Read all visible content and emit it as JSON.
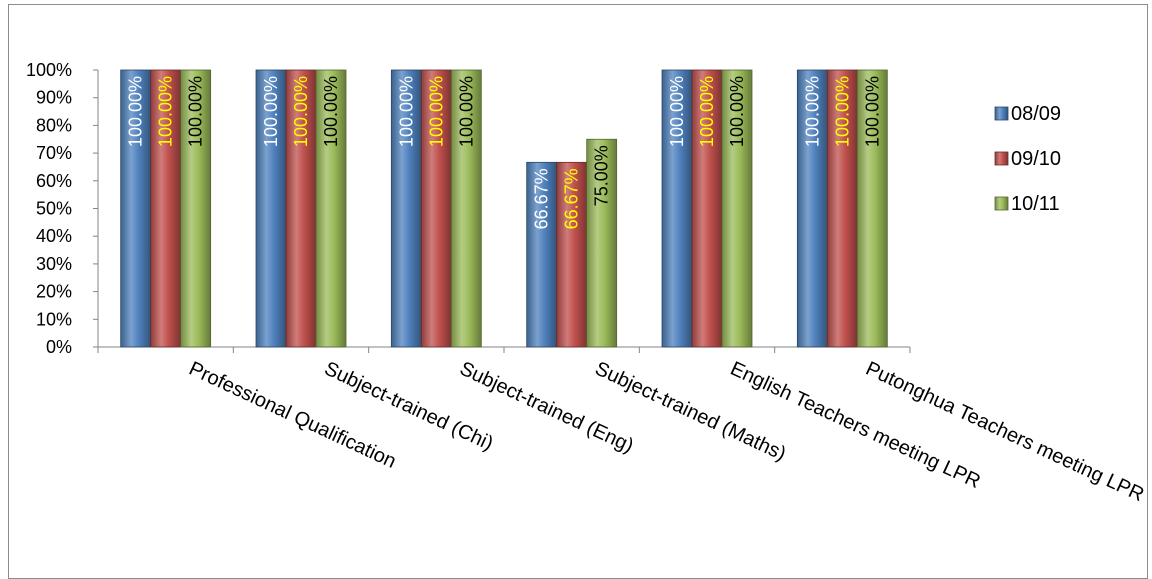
{
  "chart_data": {
    "type": "bar",
    "categories": [
      "Professional Qualification",
      "Subject-trained (Chi)",
      "Subject-trained (Eng)",
      "Subject-trained (Maths)",
      "English Teachers meeting LPR",
      "Putonghua Teachers meeting LPR"
    ],
    "series": [
      {
        "name": "08/09",
        "values": [
          100,
          100,
          100,
          66.67,
          100,
          100
        ],
        "labels": [
          "100.00%",
          "100.00%",
          "100.00%",
          "66.67%",
          "100.00%",
          "100.00%"
        ],
        "color": "#4f81bd",
        "label_color": "#ffffff"
      },
      {
        "name": "09/10",
        "values": [
          100,
          100,
          100,
          66.67,
          100,
          100
        ],
        "labels": [
          "100.00%",
          "100.00%",
          "100.00%",
          "66.67%",
          "100.00%",
          "100.00%"
        ],
        "color": "#c0504d",
        "label_color": "#ffff00"
      },
      {
        "name": "10/11",
        "values": [
          100,
          100,
          100,
          75,
          100,
          100
        ],
        "labels": [
          "100.00%",
          "100.00%",
          "100.00%",
          "75.00%",
          "100.00%",
          "100.00%"
        ],
        "color": "#9bbb59",
        "label_color": "#000000"
      }
    ],
    "y_ticks": [
      "0%",
      "10%",
      "20%",
      "30%",
      "40%",
      "50%",
      "60%",
      "70%",
      "80%",
      "90%",
      "100%"
    ],
    "ylim": [
      0,
      100
    ],
    "legend_position": "right",
    "grid": false
  }
}
